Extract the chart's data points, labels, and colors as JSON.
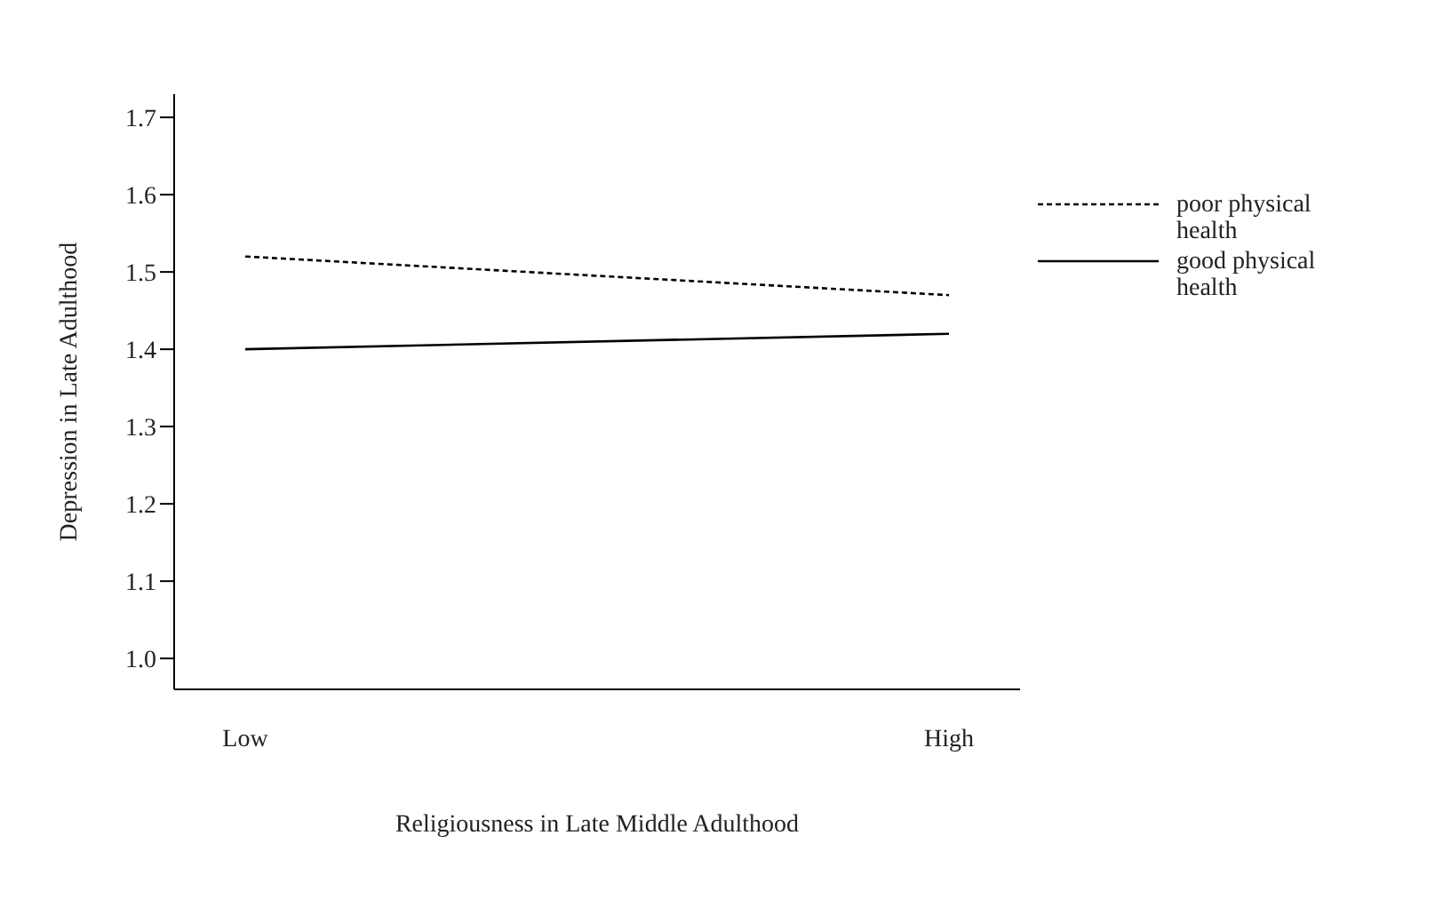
{
  "chart_data": {
    "type": "line",
    "xlabel": "Religiousness in Late Middle Adulthood",
    "ylabel": "Depression in Late Adulthood",
    "categories": [
      "Low",
      "High"
    ],
    "series": [
      {
        "name": "poor physical health",
        "color": "#000000",
        "values": [
          1.52,
          1.47
        ],
        "line_style": "dashed"
      },
      {
        "name": "good physical health",
        "color": "#000000",
        "values": [
          1.4,
          1.42
        ],
        "line_style": "solid"
      }
    ],
    "ylim": [
      0.96,
      1.73
    ],
    "yticks": [
      {
        "value": 1,
        "label": "1.0"
      },
      1.1,
      1.2,
      1.3,
      1.4,
      1.5,
      1.6,
      1.7
    ],
    "grid": false,
    "legend": "right",
    "marker": "none"
  }
}
